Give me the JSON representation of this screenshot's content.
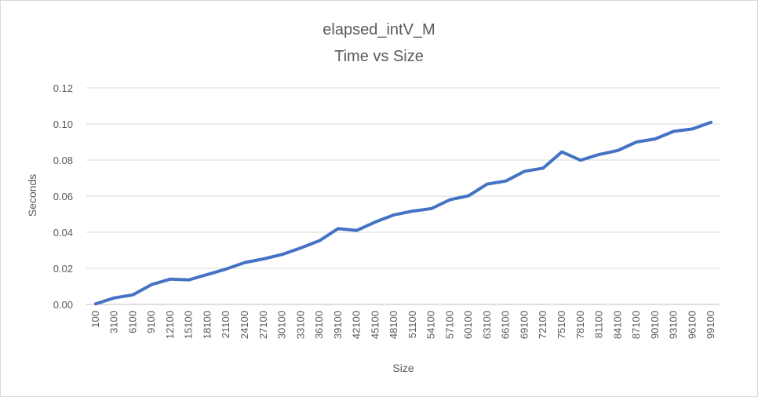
{
  "chart_data": {
    "type": "line",
    "title": "elapsed_intV_M",
    "subtitle": "Time vs Size",
    "xlabel": "Size",
    "ylabel": "Seconds",
    "ylim": [
      0,
      0.12
    ],
    "yticks": [
      "0.00",
      "0.02",
      "0.04",
      "0.06",
      "0.08",
      "0.10",
      "0.12"
    ],
    "grid": true,
    "legend": "none",
    "color": "#4472c4",
    "categories": [
      "100",
      "3100",
      "6100",
      "9100",
      "12100",
      "15100",
      "18100",
      "21100",
      "24100",
      "27100",
      "30100",
      "33100",
      "36100",
      "39100",
      "42100",
      "45100",
      "48100",
      "51100",
      "54100",
      "57100",
      "60100",
      "63100",
      "66100",
      "69100",
      "72100",
      "75100",
      "78100",
      "81100",
      "84100",
      "87100",
      "90100",
      "93100",
      "96100",
      "99100"
    ],
    "series": [
      {
        "values": [
          0.0003,
          0.0036,
          0.0053,
          0.011,
          0.014,
          0.0136,
          0.0166,
          0.0196,
          0.0232,
          0.0252,
          0.0277,
          0.0313,
          0.0353,
          0.042,
          0.041,
          0.0457,
          0.0496,
          0.0517,
          0.0531,
          0.058,
          0.0602,
          0.0667,
          0.0684,
          0.0738,
          0.0755,
          0.0845,
          0.0799,
          0.0831,
          0.0853,
          0.09,
          0.0917,
          0.0959,
          0.0972,
          0.1009
        ]
      }
    ]
  }
}
